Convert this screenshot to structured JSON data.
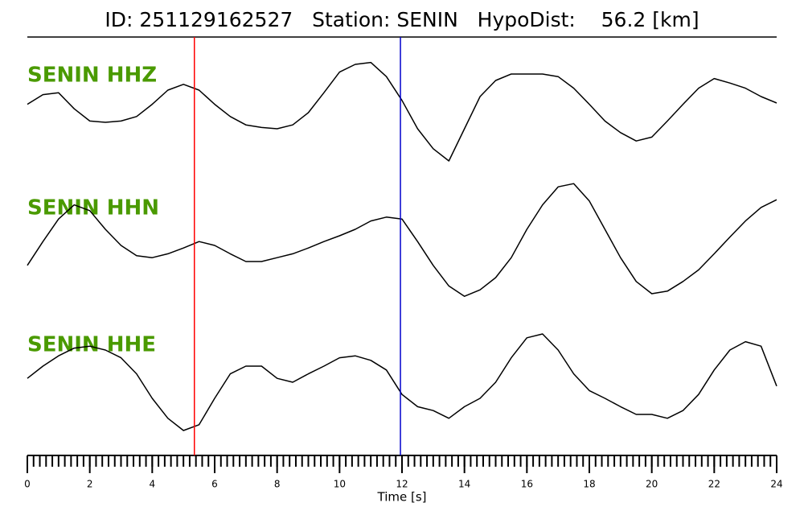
{
  "chart_data": {
    "type": "line",
    "title": "ID: 251129162527   Station: SENIN   HypoDist:    56.2 [km]",
    "x_label": "Time [s]",
    "xlim": [
      0,
      24
    ],
    "xticks": [
      0,
      2,
      4,
      6,
      8,
      10,
      12,
      14,
      16,
      18,
      20,
      22,
      24
    ],
    "xminor_step": 0.2,
    "ylim": [
      -1,
      1
    ],
    "label_color": "#4a9a00",
    "vlines": [
      {
        "x": 5.35,
        "color": "#ff0000"
      },
      {
        "x": 11.95,
        "color": "#0000cc"
      }
    ],
    "x": [
      0,
      0.5,
      1,
      1.5,
      2,
      2.5,
      3,
      3.5,
      4,
      4.5,
      5,
      5.5,
      6,
      6.5,
      7,
      7.5,
      8,
      8.5,
      9,
      9.5,
      10,
      10.5,
      11,
      11.5,
      12,
      12.5,
      13,
      13.5,
      14,
      14.5,
      15,
      15.5,
      16,
      16.5,
      17,
      17.5,
      18,
      18.5,
      19,
      19.5,
      20,
      20.5,
      21,
      21.5,
      22,
      22.5,
      23,
      23.5,
      24
    ],
    "series": [
      {
        "name": "SENIN HHZ",
        "color": "#000000",
        "values": [
          0.13,
          0.28,
          0.31,
          0.06,
          -0.13,
          -0.15,
          -0.13,
          -0.06,
          0.13,
          0.35,
          0.44,
          0.35,
          0.13,
          -0.06,
          -0.19,
          -0.23,
          -0.25,
          -0.19,
          0,
          0.31,
          0.63,
          0.75,
          0.78,
          0.56,
          0.19,
          -0.25,
          -0.56,
          -0.75,
          -0.25,
          0.25,
          0.5,
          0.6,
          0.6,
          0.6,
          0.56,
          0.38,
          0.13,
          -0.13,
          -0.31,
          -0.44,
          -0.38,
          -0.13,
          0.13,
          0.38,
          0.53,
          0.46,
          0.38,
          0.25,
          0.15
        ]
      },
      {
        "name": "SENIN HHN",
        "color": "#000000",
        "values": [
          -0.31,
          0.06,
          0.41,
          0.63,
          0.54,
          0.25,
          0,
          -0.16,
          -0.19,
          -0.13,
          -0.04,
          0.06,
          0,
          -0.13,
          -0.25,
          -0.25,
          -0.19,
          -0.13,
          -0.04,
          0.06,
          0.15,
          0.25,
          0.38,
          0.44,
          0.41,
          0.06,
          -0.31,
          -0.63,
          -0.79,
          -0.69,
          -0.5,
          -0.19,
          0.25,
          0.63,
          0.91,
          0.96,
          0.69,
          0.25,
          -0.19,
          -0.56,
          -0.75,
          -0.71,
          -0.56,
          -0.38,
          -0.13,
          0.13,
          0.38,
          0.59,
          0.71
        ]
      },
      {
        "name": "SENIN HHE",
        "color": "#000000",
        "values": [
          0.06,
          0.25,
          0.41,
          0.53,
          0.56,
          0.5,
          0.38,
          0.13,
          -0.25,
          -0.56,
          -0.75,
          -0.66,
          -0.25,
          0.13,
          0.25,
          0.25,
          0.06,
          0,
          0.13,
          0.25,
          0.38,
          0.41,
          0.34,
          0.19,
          -0.19,
          -0.38,
          -0.44,
          -0.56,
          -0.38,
          -0.25,
          0,
          0.38,
          0.69,
          0.75,
          0.5,
          0.13,
          -0.13,
          -0.25,
          -0.38,
          -0.5,
          -0.5,
          -0.56,
          -0.44,
          -0.19,
          0.19,
          0.5,
          0.63,
          0.56,
          -0.06
        ]
      }
    ]
  }
}
